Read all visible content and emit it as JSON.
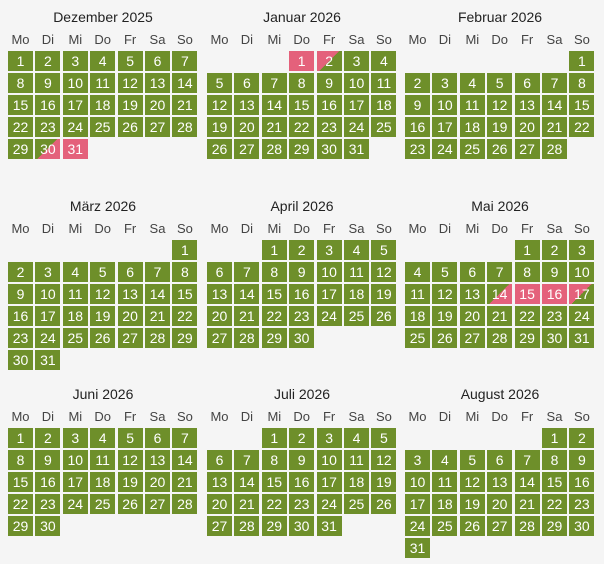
{
  "weekdays": [
    "Mo",
    "Di",
    "Mi",
    "Do",
    "Fr",
    "Sa",
    "So"
  ],
  "colors": {
    "free": "#6e8f2a",
    "booked": "#e4617b",
    "background": "#f5f5f5"
  },
  "months": [
    {
      "title": "Dezember 2025",
      "offset": 0,
      "days": 31,
      "states": {
        "30": "arr",
        "31": "booked"
      }
    },
    {
      "title": "Januar 2026",
      "offset": 3,
      "days": 31,
      "states": {
        "1": "booked",
        "2": "dep"
      }
    },
    {
      "title": "Februar 2026",
      "offset": 6,
      "days": 28,
      "states": {}
    },
    {
      "title": "März 2026",
      "offset": 6,
      "days": 31,
      "states": {}
    },
    {
      "title": "April 2026",
      "offset": 2,
      "days": 30,
      "states": {}
    },
    {
      "title": "Mai 2026",
      "offset": 4,
      "days": 31,
      "states": {
        "14": "arr",
        "15": "booked",
        "16": "booked",
        "17": "dep"
      }
    },
    {
      "title": "Juni 2026",
      "offset": 0,
      "days": 30,
      "states": {}
    },
    {
      "title": "Juli 2026",
      "offset": 2,
      "days": 31,
      "states": {}
    },
    {
      "title": "August 2026",
      "offset": 5,
      "days": 31,
      "states": {}
    }
  ]
}
